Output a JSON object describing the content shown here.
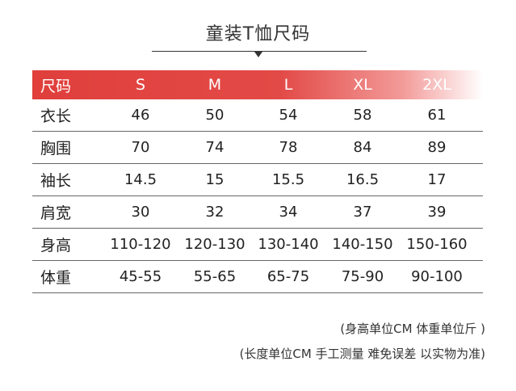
{
  "title": "童装T恤尺码",
  "header": {
    "label": "尺码",
    "sizes": [
      "S",
      "M",
      "L",
      "XL",
      "2XL"
    ]
  },
  "rows": [
    {
      "label": "衣长",
      "values": [
        "46",
        "50",
        "54",
        "58",
        "61"
      ]
    },
    {
      "label": "胸围",
      "values": [
        "70",
        "74",
        "78",
        "84",
        "89"
      ]
    },
    {
      "label": "袖长",
      "values": [
        "14.5",
        "15",
        "15.5",
        "16.5",
        "17"
      ]
    },
    {
      "label": "肩宽",
      "values": [
        "30",
        "32",
        "34",
        "37",
        "39"
      ]
    },
    {
      "label": "身高",
      "values": [
        "110-120",
        "120-130",
        "130-140",
        "140-150",
        "150-160"
      ]
    },
    {
      "label": "体重",
      "values": [
        "45-55",
        "55-65",
        "65-75",
        "75-90",
        "90-100"
      ]
    }
  ],
  "notes": {
    "line1": "(身高单位CM 体重单位斤 )",
    "line2": "(长度单位CM 手工测量 难免误差 以实物为准)"
  },
  "colors": {
    "header_red": "#e03f3c"
  }
}
